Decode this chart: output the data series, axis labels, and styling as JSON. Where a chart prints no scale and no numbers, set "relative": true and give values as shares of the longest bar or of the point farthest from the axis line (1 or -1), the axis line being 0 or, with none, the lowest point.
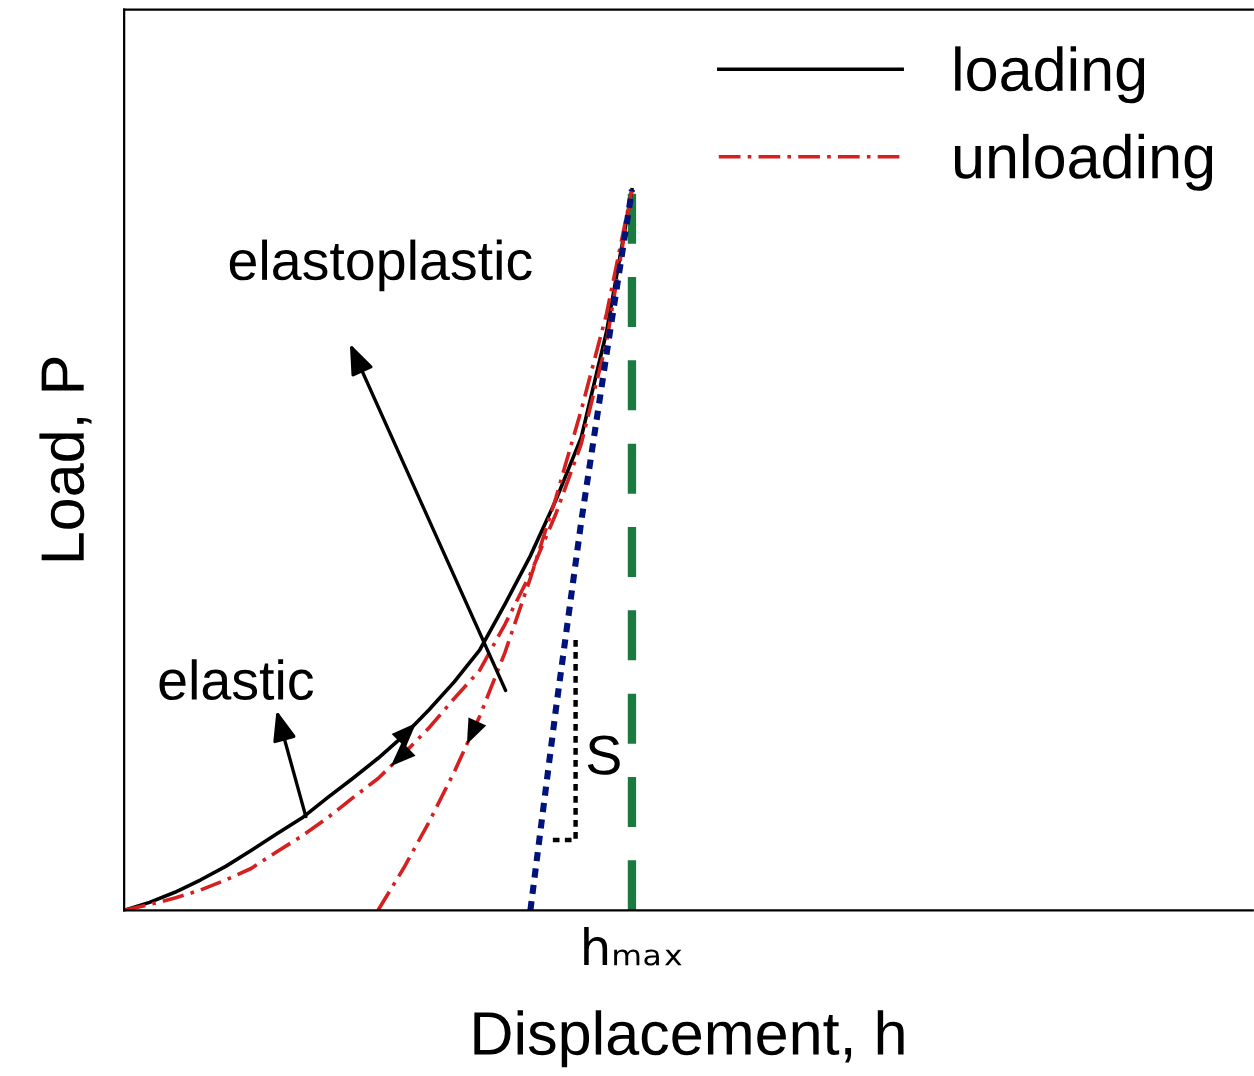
{
  "chart_data": {
    "type": "line",
    "relative": true,
    "xlabel": "Displacement, h",
    "ylabel": "Load, P",
    "legend": "top right",
    "categories": [
      null,
      null,
      null,
      null,
      null,
      null,
      null,
      null,
      null,
      null,
      null,
      null,
      null,
      null,
      null,
      null,
      null,
      null,
      null,
      null,
      null,
      null,
      null,
      null,
      null,
      null,
      null,
      null,
      null,
      null,
      null,
      null,
      null,
      null,
      null,
      null,
      null,
      null,
      null,
      null,
      null,
      null,
      null,
      null,
      null
    ],
    "series": [
      {
        "name": "loading",
        "color": "#000000",
        "line_style": "solid",
        "values": [
          0,
          0.011,
          0.025,
          0.042,
          0.061,
          0.083,
          0.106,
          0.128,
          0.156,
          0.183,
          0.211,
          0.242,
          0.278,
          0.317,
          0.361,
          0.425,
          0.492,
          0.569,
          0.656,
          0.803,
          1,
          null,
          null,
          null,
          null,
          null,
          null,
          null,
          null,
          null,
          null,
          null,
          null,
          null,
          null,
          null,
          null,
          null,
          null,
          null,
          null,
          null,
          null,
          null,
          null
        ]
      },
      {
        "name": "unloading",
        "color": "#d62020",
        "line_style": "dashdot",
        "values": [
          0,
          0.008,
          0.017,
          0.028,
          0.042,
          0.058,
          0.081,
          0.103,
          0.128,
          0.156,
          0.183,
          0.217,
          0.253,
          0.294,
          0.333,
          0.397,
          0.467,
          0.55,
          0.647,
          0.789,
          1,
          null,
          null,
          null,
          null,
          null,
          null,
          null,
          null,
          null,
          null,
          null,
          null,
          null,
          null,
          null,
          null,
          null,
          null,
          null,
          null,
          null,
          null,
          null,
          null
        ]
      },
      {
        "color": "#d62020",
        "line_style": "dashdot",
        "values": [
          null,
          null,
          null,
          null,
          null,
          null,
          null,
          null,
          null,
          null,
          0,
          0.058,
          0.122,
          0.192,
          0.269,
          0.358,
          0.461,
          0.572,
          0.694,
          0.828,
          1,
          null,
          null,
          null,
          null,
          null,
          null,
          null,
          null,
          null,
          null,
          null,
          null,
          null,
          null,
          null,
          null,
          null,
          null,
          null,
          null,
          null,
          null,
          null,
          null
        ]
      },
      {
        "color": "#00137a",
        "line_style": "dotted",
        "values": [
          null,
          null,
          null,
          null,
          null,
          null,
          null,
          null,
          null,
          null,
          null,
          null,
          null,
          null,
          null,
          null,
          0,
          0.278,
          0.539,
          0.772,
          1,
          null,
          null,
          null,
          null,
          null,
          null,
          null,
          null,
          null,
          null,
          null,
          null,
          null,
          null,
          null,
          null,
          null,
          null,
          null,
          null,
          null,
          null,
          null,
          null
        ]
      }
    ],
    "annotations": [
      "elastic",
      "elastoplastic",
      "S",
      "hₘₐₓ"
    ]
  }
}
